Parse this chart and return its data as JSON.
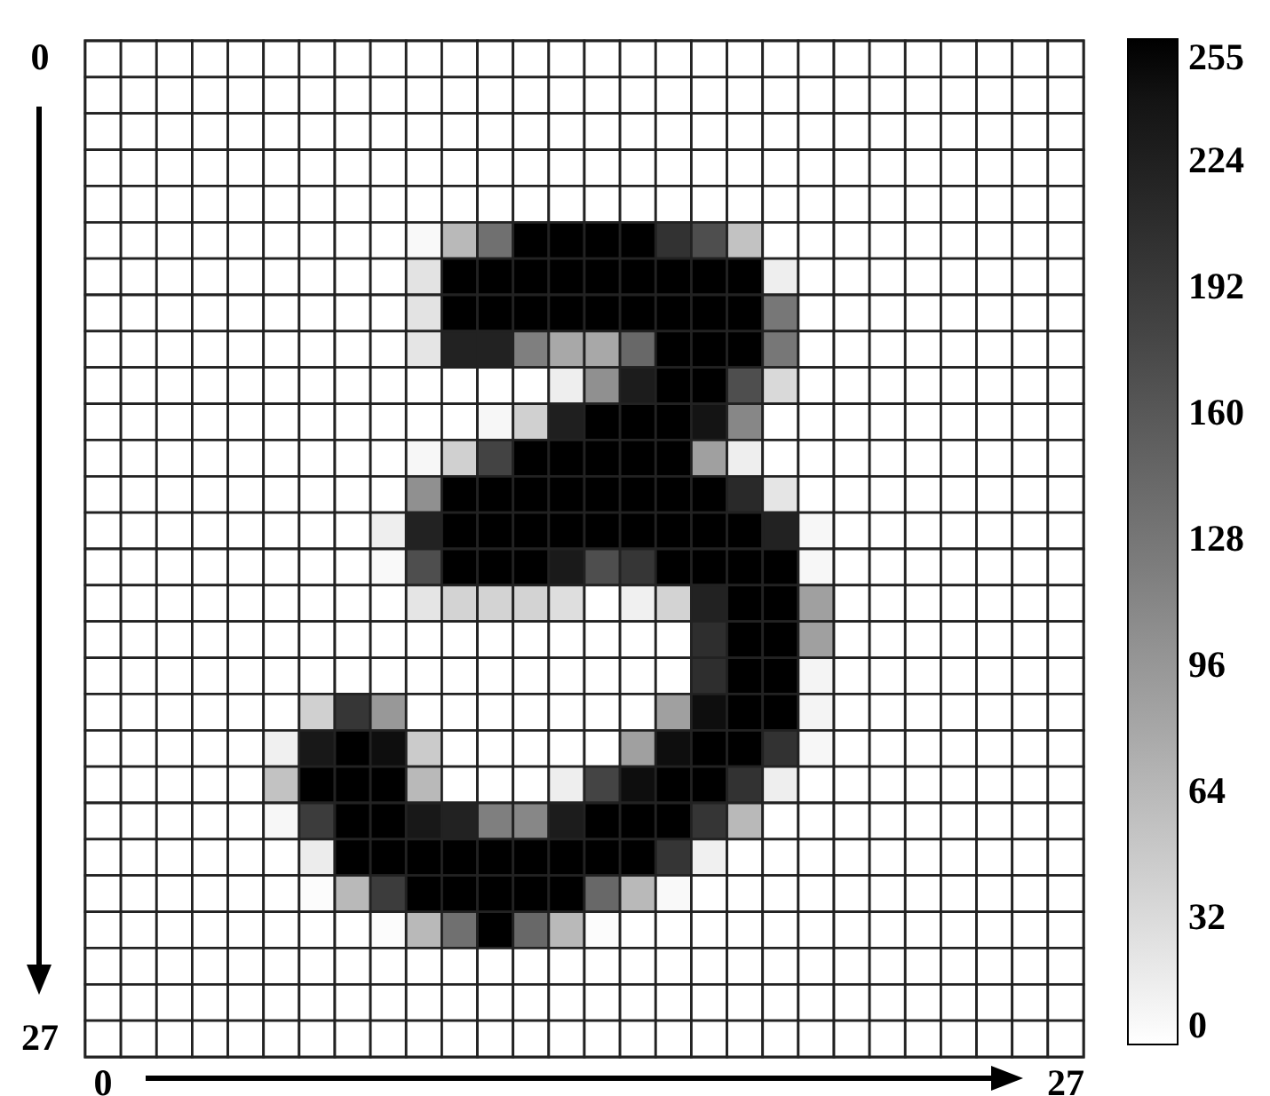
{
  "chart_data": {
    "type": "heatmap",
    "categories": [
      "0",
      null,
      null,
      null,
      null,
      null,
      null,
      null,
      null,
      null,
      null,
      null,
      null,
      null,
      null,
      null,
      null,
      null,
      null,
      null,
      null,
      null,
      null,
      null,
      null,
      null,
      null,
      "27"
    ],
    "y_categories": [
      "0",
      null,
      null,
      null,
      null,
      null,
      null,
      null,
      null,
      null,
      null,
      null,
      null,
      null,
      null,
      null,
      null,
      null,
      null,
      null,
      null,
      null,
      null,
      null,
      null,
      null,
      null,
      "27"
    ],
    "cells": [
      [
        0,
        0,
        0,
        0,
        0,
        0,
        0,
        0,
        0,
        0,
        0,
        0,
        0,
        0,
        0,
        0,
        0,
        0,
        0,
        0,
        0,
        0,
        0,
        0,
        0,
        0,
        0,
        0
      ],
      [
        0,
        0,
        0,
        0,
        0,
        0,
        0,
        0,
        0,
        0,
        0,
        0,
        0,
        0,
        0,
        0,
        0,
        0,
        0,
        0,
        0,
        0,
        0,
        0,
        0,
        0,
        0,
        0
      ],
      [
        0,
        0,
        0,
        0,
        0,
        0,
        0,
        0,
        0,
        0,
        0,
        0,
        0,
        0,
        0,
        0,
        0,
        0,
        0,
        0,
        0,
        0,
        0,
        0,
        0,
        0,
        0,
        0
      ],
      [
        0,
        0,
        0,
        0,
        0,
        0,
        0,
        0,
        0,
        0,
        0,
        0,
        0,
        0,
        0,
        0,
        0,
        0,
        0,
        0,
        0,
        0,
        0,
        0,
        0,
        0,
        0,
        0
      ],
      [
        0,
        0,
        0,
        0,
        0,
        0,
        0,
        0,
        0,
        0,
        0,
        0,
        0,
        0,
        0,
        0,
        0,
        0,
        0,
        0,
        0,
        0,
        0,
        0,
        0,
        0,
        0,
        0
      ],
      [
        0,
        0,
        0,
        0,
        0,
        0,
        0,
        0,
        0,
        5,
        63,
        135,
        255,
        255,
        255,
        255,
        202,
        170,
        55,
        0,
        0,
        0,
        0,
        0,
        0,
        0,
        0,
        0
      ],
      [
        0,
        0,
        0,
        0,
        0,
        0,
        0,
        0,
        0,
        25,
        255,
        255,
        255,
        255,
        255,
        255,
        255,
        255,
        255,
        15,
        0,
        0,
        0,
        0,
        0,
        0,
        0,
        0
      ],
      [
        0,
        0,
        0,
        0,
        0,
        0,
        0,
        0,
        0,
        25,
        255,
        255,
        255,
        255,
        255,
        255,
        255,
        255,
        255,
        127,
        0,
        0,
        0,
        0,
        0,
        0,
        0,
        0
      ],
      [
        0,
        0,
        0,
        0,
        0,
        0,
        0,
        0,
        0,
        23,
        221,
        221,
        119,
        79,
        79,
        143,
        255,
        255,
        255,
        127,
        0,
        0,
        0,
        0,
        0,
        0,
        0,
        0
      ],
      [
        0,
        0,
        0,
        0,
        0,
        0,
        0,
        0,
        0,
        0,
        0,
        0,
        0,
        15,
        103,
        229,
        255,
        255,
        170,
        34,
        0,
        0,
        0,
        0,
        0,
        0,
        0,
        0
      ],
      [
        0,
        0,
        0,
        0,
        0,
        0,
        0,
        0,
        0,
        0,
        0,
        7,
        42,
        225,
        255,
        255,
        255,
        239,
        111,
        0,
        0,
        0,
        0,
        0,
        0,
        0,
        0,
        0
      ],
      [
        0,
        0,
        0,
        0,
        0,
        0,
        0,
        0,
        0,
        7,
        42,
        183,
        255,
        255,
        255,
        255,
        255,
        87,
        15,
        0,
        0,
        0,
        0,
        0,
        0,
        0,
        0,
        0
      ],
      [
        0,
        0,
        0,
        0,
        0,
        0,
        0,
        0,
        0,
        103,
        255,
        255,
        255,
        255,
        255,
        255,
        255,
        255,
        213,
        23,
        0,
        0,
        0,
        0,
        0,
        0,
        0,
        0
      ],
      [
        0,
        0,
        0,
        0,
        0,
        0,
        0,
        0,
        15,
        221,
        255,
        255,
        255,
        255,
        255,
        255,
        255,
        255,
        255,
        221,
        7,
        0,
        0,
        0,
        0,
        0,
        0,
        0
      ],
      [
        0,
        0,
        0,
        0,
        0,
        0,
        0,
        0,
        5,
        170,
        255,
        255,
        255,
        231,
        170,
        197,
        255,
        255,
        255,
        255,
        7,
        0,
        0,
        0,
        0,
        0,
        0,
        0
      ],
      [
        0,
        0,
        0,
        0,
        0,
        0,
        0,
        0,
        0,
        23,
        39,
        39,
        39,
        29,
        0,
        13,
        39,
        221,
        255,
        255,
        87,
        0,
        0,
        0,
        0,
        0,
        0,
        0
      ],
      [
        0,
        0,
        0,
        0,
        0,
        0,
        0,
        0,
        0,
        0,
        0,
        0,
        0,
        0,
        0,
        0,
        0,
        207,
        255,
        255,
        87,
        0,
        0,
        0,
        0,
        0,
        0,
        0
      ],
      [
        0,
        0,
        0,
        0,
        0,
        0,
        0,
        0,
        0,
        0,
        0,
        0,
        0,
        0,
        0,
        0,
        0,
        207,
        255,
        255,
        10,
        0,
        0,
        0,
        0,
        0,
        0,
        0
      ],
      [
        0,
        0,
        0,
        0,
        0,
        0,
        42,
        197,
        95,
        0,
        0,
        0,
        0,
        0,
        0,
        0,
        87,
        245,
        255,
        255,
        10,
        0,
        0,
        0,
        0,
        0,
        0,
        0
      ],
      [
        0,
        0,
        0,
        0,
        0,
        13,
        234,
        255,
        245,
        47,
        0,
        0,
        0,
        0,
        0,
        87,
        245,
        255,
        255,
        202,
        7,
        0,
        0,
        0,
        0,
        0,
        0,
        0
      ],
      [
        0,
        0,
        0,
        0,
        0,
        55,
        255,
        255,
        255,
        63,
        0,
        0,
        0,
        15,
        181,
        245,
        255,
        255,
        202,
        15,
        0,
        0,
        0,
        0,
        0,
        0,
        0,
        0
      ],
      [
        0,
        0,
        0,
        0,
        0,
        7,
        191,
        255,
        255,
        234,
        221,
        119,
        111,
        229,
        255,
        255,
        255,
        199,
        63,
        0,
        0,
        0,
        0,
        0,
        0,
        0,
        0,
        0
      ],
      [
        0,
        0,
        0,
        0,
        0,
        0,
        17,
        255,
        255,
        255,
        255,
        255,
        255,
        255,
        255,
        255,
        199,
        13,
        0,
        0,
        0,
        0,
        0,
        0,
        0,
        0,
        0,
        0
      ],
      [
        0,
        0,
        0,
        0,
        0,
        0,
        3,
        63,
        191,
        255,
        255,
        255,
        255,
        255,
        143,
        63,
        5,
        0,
        0,
        0,
        0,
        0,
        0,
        0,
        0,
        0,
        0,
        0
      ],
      [
        0,
        0,
        0,
        0,
        0,
        0,
        0,
        0,
        3,
        63,
        135,
        255,
        143,
        63,
        3,
        0,
        0,
        0,
        0,
        0,
        0,
        0,
        0,
        0,
        0,
        0,
        0,
        0
      ],
      [
        0,
        0,
        0,
        0,
        0,
        0,
        0,
        0,
        0,
        0,
        0,
        0,
        0,
        0,
        0,
        0,
        0,
        0,
        0,
        0,
        0,
        0,
        0,
        0,
        0,
        0,
        0,
        0
      ],
      [
        0,
        0,
        0,
        0,
        0,
        0,
        0,
        0,
        0,
        0,
        0,
        0,
        0,
        0,
        0,
        0,
        0,
        0,
        0,
        0,
        0,
        0,
        0,
        0,
        0,
        0,
        0,
        0
      ],
      [
        0,
        0,
        0,
        0,
        0,
        0,
        0,
        0,
        0,
        0,
        0,
        0,
        0,
        0,
        0,
        0,
        0,
        0,
        0,
        0,
        0,
        0,
        0,
        0,
        0,
        0,
        0,
        0
      ]
    ],
    "clim": [
      0,
      255
    ],
    "cticks": [
      0,
      32,
      64,
      96,
      128,
      160,
      192,
      224,
      255
    ]
  }
}
